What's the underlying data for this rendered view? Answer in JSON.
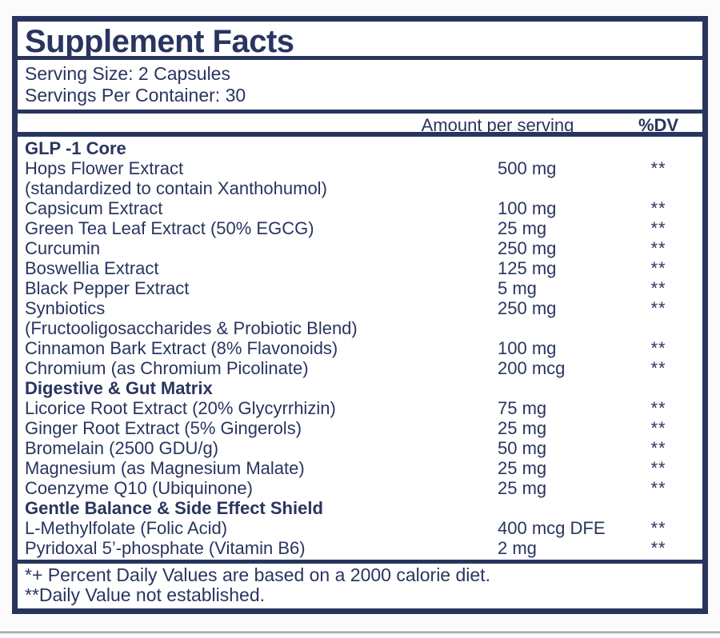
{
  "label": {
    "title": "Supplement Facts",
    "serving": {
      "size_line": "Serving Size: 2 Capsules",
      "container_line": "Servings Per Container: 30"
    },
    "columns": {
      "amount_header": "Amount per serving",
      "dv_header": "%DV"
    },
    "rows": [
      {
        "type": "section",
        "name": "GLP -1 Core",
        "amount": "",
        "dv": ""
      },
      {
        "type": "ingredient",
        "name": "Hops Flower Extract",
        "amount": "500 mg",
        "dv": "**"
      },
      {
        "type": "continuation",
        "name": "(standardized to contain Xanthohumol)",
        "amount": "",
        "dv": ""
      },
      {
        "type": "ingredient",
        "name": "Capsicum Extract",
        "amount": "100 mg",
        "dv": "**"
      },
      {
        "type": "ingredient",
        "name": "Green Tea Leaf Extract (50% EGCG)",
        "amount": "25 mg",
        "dv": "**"
      },
      {
        "type": "ingredient",
        "name": "Curcumin",
        "amount": "250 mg",
        "dv": "**"
      },
      {
        "type": "ingredient",
        "name": "Boswellia Extract",
        "amount": "125 mg",
        "dv": "**"
      },
      {
        "type": "ingredient",
        "name": "Black Pepper Extract",
        "amount": "5 mg",
        "dv": "**"
      },
      {
        "type": "ingredient",
        "name": "Synbiotics",
        "amount": "250 mg",
        "dv": "**"
      },
      {
        "type": "continuation",
        "name": "(Fructooligosaccharides & Probiotic Blend)",
        "amount": "",
        "dv": ""
      },
      {
        "type": "ingredient",
        "name": "Cinnamon Bark Extract (8% Flavonoids)",
        "amount": "100 mg",
        "dv": "**"
      },
      {
        "type": "ingredient",
        "name": "Chromium (as Chromium Picolinate)",
        "amount": "200 mcg",
        "dv": "**"
      },
      {
        "type": "section",
        "name": "Digestive & Gut Matrix",
        "amount": "",
        "dv": ""
      },
      {
        "type": "ingredient",
        "name": "Licorice Root Extract (20% Glycyrrhizin)",
        "amount": "75 mg",
        "dv": "**"
      },
      {
        "type": "ingredient",
        "name": "Ginger Root Extract (5% Gingerols)",
        "amount": "25 mg",
        "dv": "**"
      },
      {
        "type": "ingredient",
        "name": "Bromelain (2500 GDU/g)",
        "amount": "50 mg",
        "dv": "**"
      },
      {
        "type": "ingredient",
        "name": "Magnesium (as Magnesium Malate)",
        "amount": "25 mg",
        "dv": "**"
      },
      {
        "type": "ingredient",
        "name": "Coenzyme Q10 (Ubiquinone)",
        "amount": "25 mg",
        "dv": "**"
      },
      {
        "type": "section",
        "name": "Gentle Balance & Side Effect Shield",
        "amount": "",
        "dv": ""
      },
      {
        "type": "ingredient",
        "name": "L-Methylfolate (Folic Acid)",
        "amount": "400 mcg DFE",
        "dv": "**"
      },
      {
        "type": "ingredient",
        "name": "Pyridoxal 5’-phosphate (Vitamin B6)",
        "amount": "2 mg",
        "dv": "**"
      }
    ],
    "footnotes": {
      "line1": "*+ Percent Daily Values are based on a 2000 calorie diet.",
      "line2": "**Daily Value not established."
    },
    "colors": {
      "navy": "#29355f",
      "panel_background": "#ffffff",
      "page_background": "#fcfbfb",
      "bottom_rule_gray": "#6f6f6f"
    }
  }
}
